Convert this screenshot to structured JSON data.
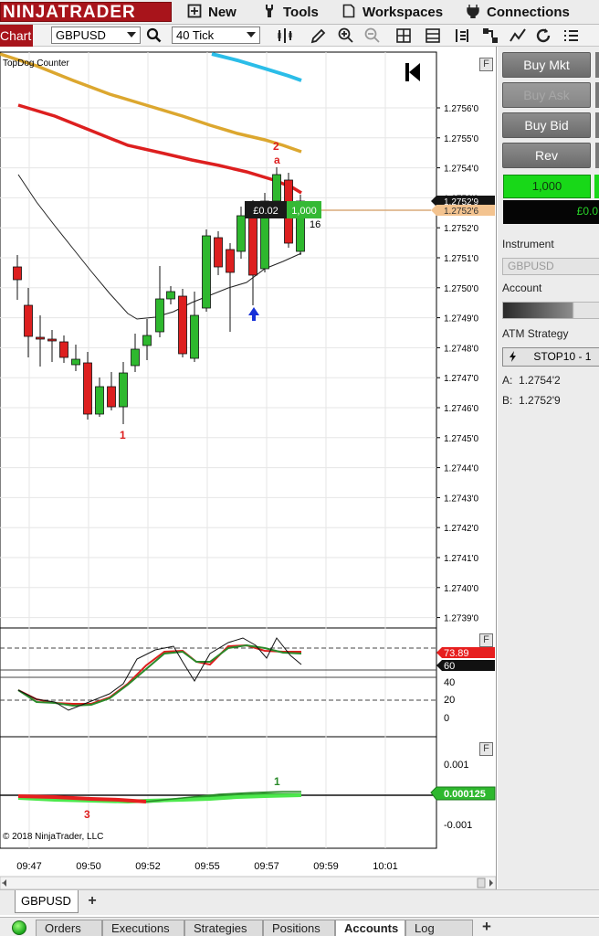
{
  "app": {
    "logo": "NINJATRADER"
  },
  "menu": [
    {
      "label": "New",
      "icon": "new-window-icon"
    },
    {
      "label": "Tools",
      "icon": "wrench-icon"
    },
    {
      "label": "Workspaces",
      "icon": "document-icon"
    },
    {
      "label": "Connections",
      "icon": "plug-icon"
    }
  ],
  "toolbar": {
    "tab_label": "Chart",
    "instrument": "GBPUSD",
    "bar_type": "40 Tick"
  },
  "chart": {
    "indicator_label": "TopDog Counter",
    "copyright": "© 2018 NinjaTrader, LLC",
    "price_axis": [
      "1.2756'0",
      "1.2755'0",
      "1.2754'0",
      "1.2753'0",
      "1.2752'0",
      "1.2751'0",
      "1.2750'0",
      "1.2749'0",
      "1.2748'0",
      "1.2747'0",
      "1.2746'0",
      "1.2745'0",
      "1.2744'0",
      "1.2743'0",
      "1.2742'0",
      "1.2741'0",
      "1.2740'0",
      "1.2739'0"
    ],
    "last_price": "1.2752'9",
    "order_price": "1.2752'6",
    "position_pnl": "£0.02",
    "position_qty": "1,000",
    "bar_counter": "16",
    "markers": {
      "low_count": "1",
      "high_count": "2",
      "high_letter": "a"
    },
    "osc1_axis": [
      "40",
      "20",
      "0"
    ],
    "osc1_value": "73.89",
    "osc1_level": "60",
    "osc2_axis": [
      "0.001",
      "-0.001"
    ],
    "osc2_value": "0.000125",
    "osc2_marker_top": "1",
    "osc2_marker_bottom": "3",
    "time_axis": [
      "09:47",
      "09:50",
      "09:52",
      "09:55",
      "09:57",
      "09:59",
      "10:01"
    ],
    "colors": {
      "bull": "#2eb82e",
      "bear": "#dd1f1f",
      "ema_gold": "#dca72f",
      "ema_red": "#dd1f1f",
      "ema_cyan": "#2bbde8"
    }
  },
  "trader": {
    "buy_mkt": "Buy Mkt",
    "buy_ask": "Buy Ask",
    "buy_bid": "Buy Bid",
    "rev": "Rev",
    "quantity": "1,000",
    "pnl": "£0.0",
    "instrument_label": "Instrument",
    "instrument_value": "GBPUSD",
    "account_label": "Account",
    "atm_label": "ATM Strategy",
    "atm_value": "STOP10 - 1",
    "ask_label": "A:",
    "ask_value": "1.2754'2",
    "bid_label": "B:",
    "bid_value": "1.2752'9"
  },
  "chart_tabs": {
    "active": "GBPUSD"
  },
  "bottom_tabs": [
    "Orders",
    "Executions",
    "Strategies",
    "Positions",
    "Accounts",
    "Log"
  ],
  "bottom_active": "Accounts"
}
